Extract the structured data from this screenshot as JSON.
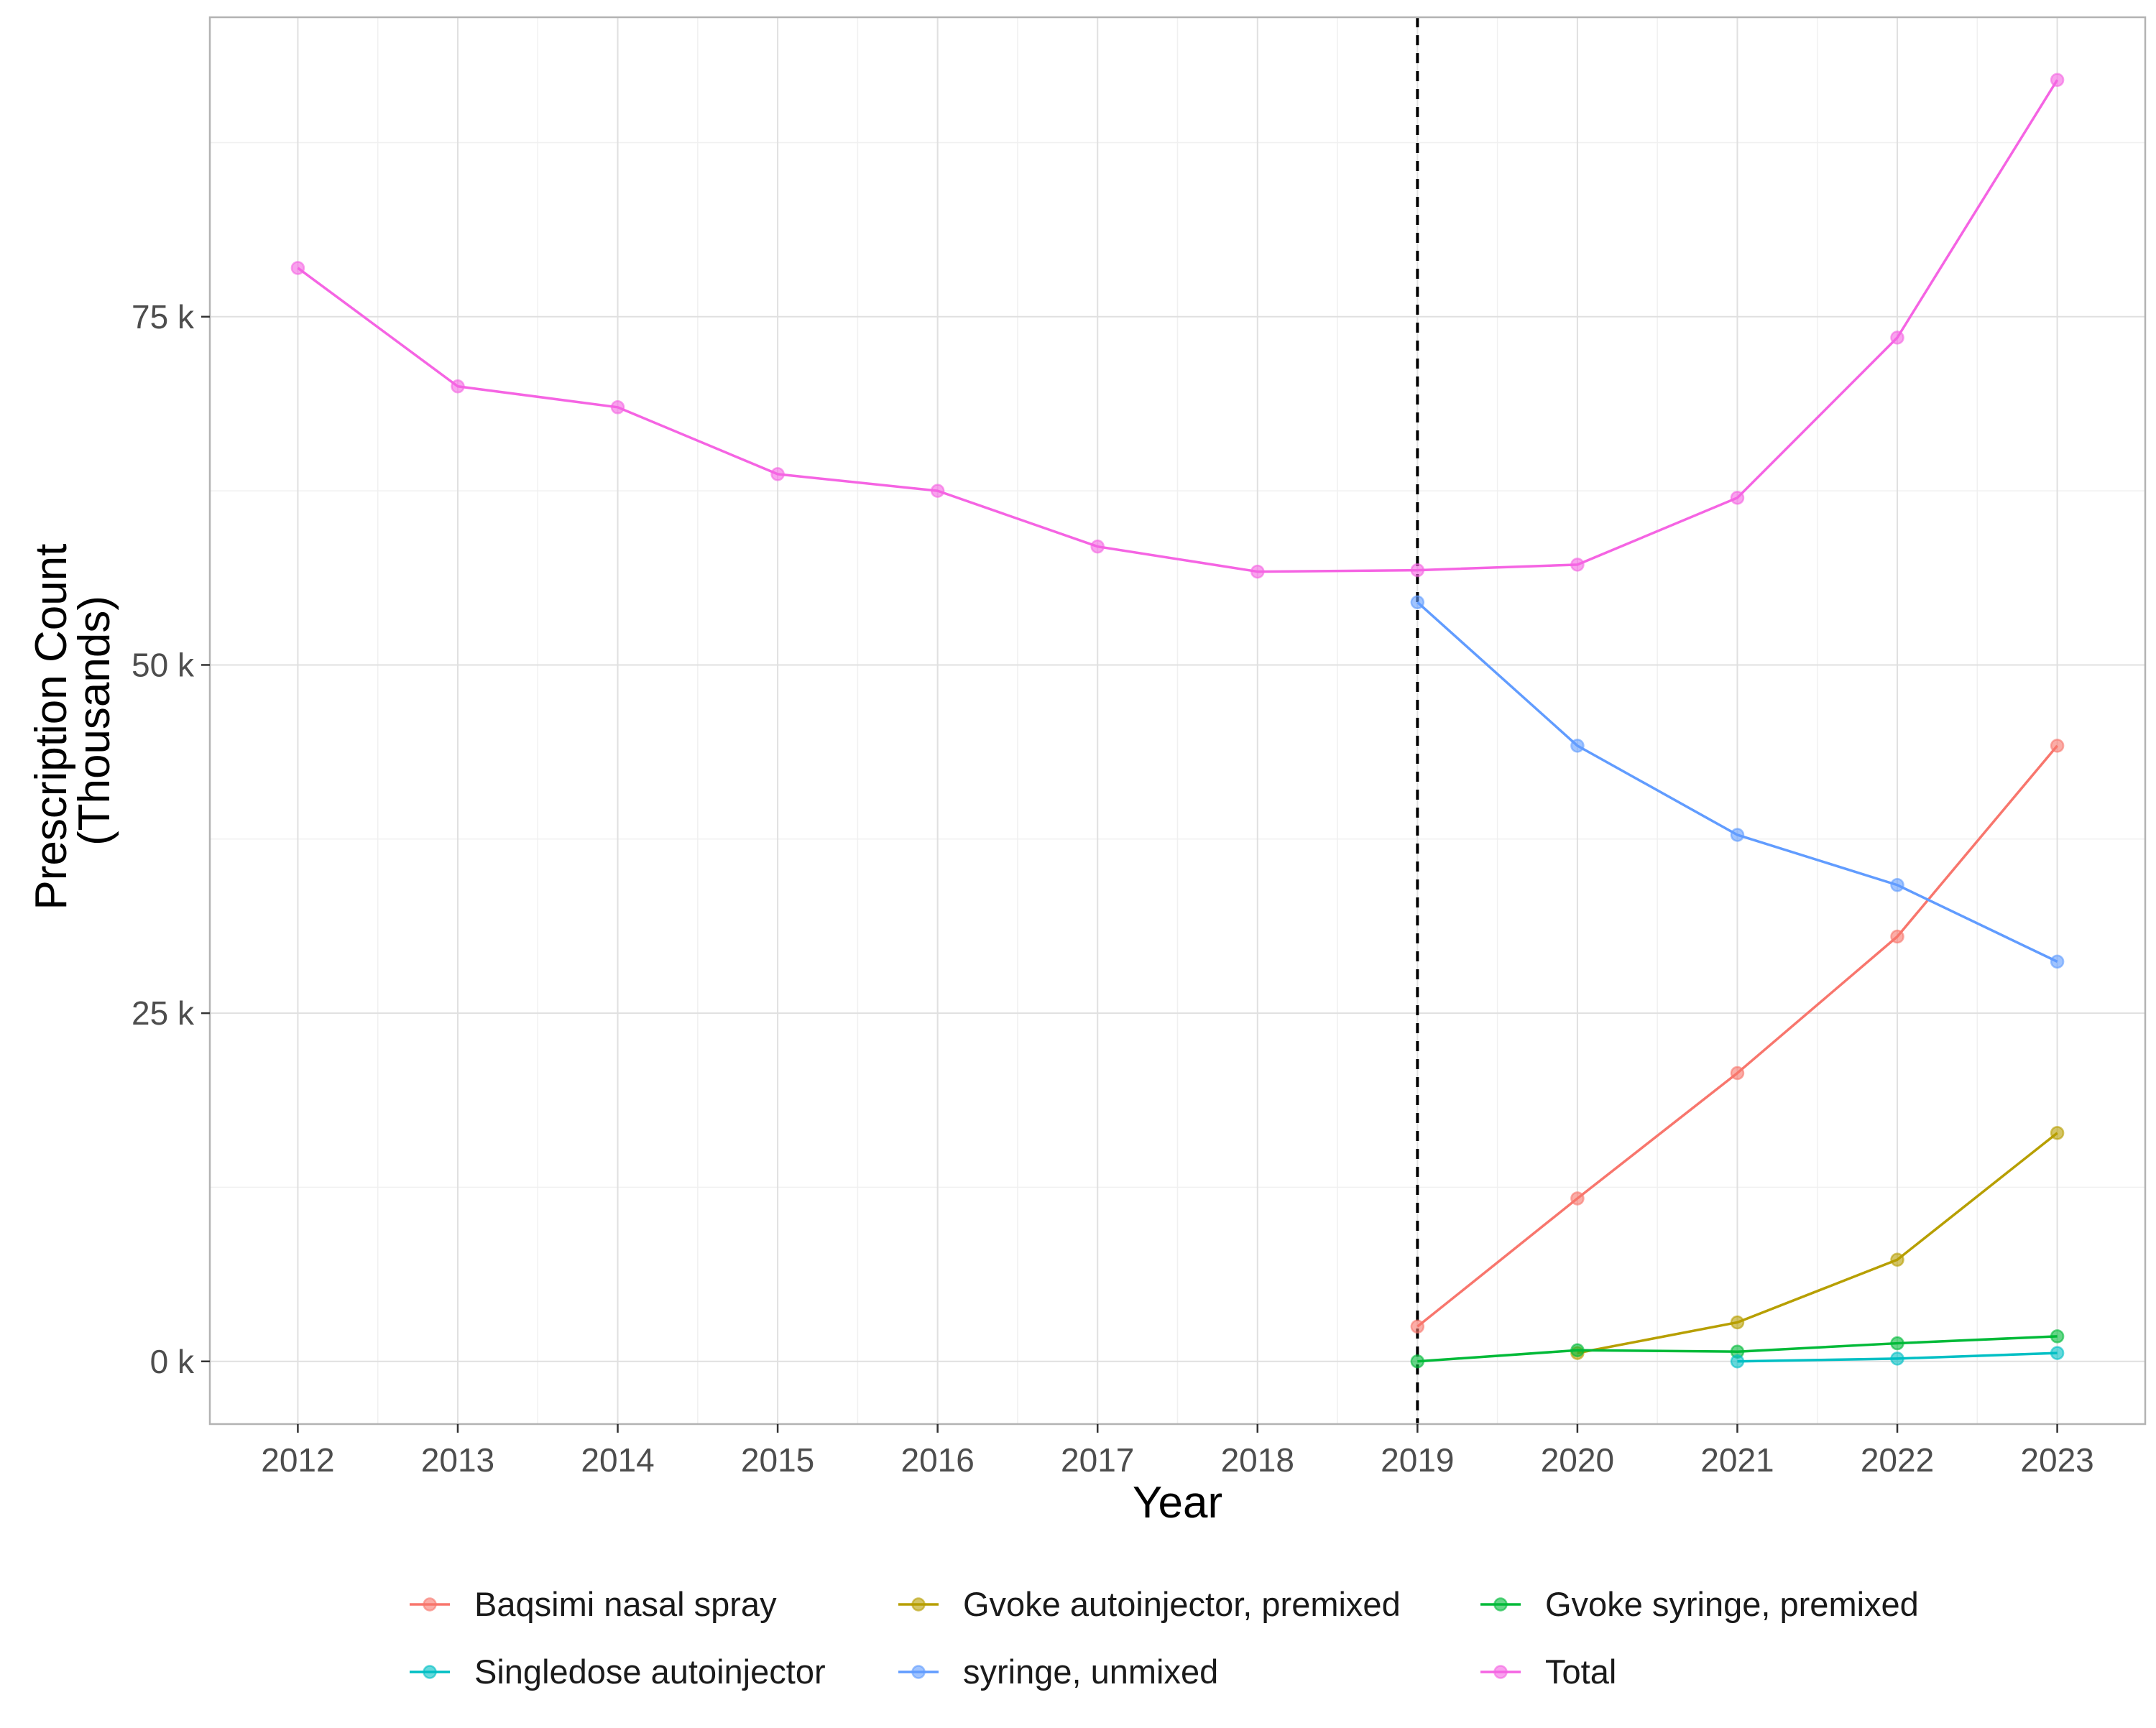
{
  "chart_data": {
    "type": "line",
    "title": "",
    "xlabel": "Year",
    "ylabel": [
      "Prescription Count",
      "(Thousands)"
    ],
    "x": [
      "2012",
      "2013",
      "2014",
      "2015",
      "2016",
      "2017",
      "2018",
      "2019",
      "2020",
      "2021",
      "2022",
      "2023"
    ],
    "xlim": [
      2011.45,
      2023.55
    ],
    "ylim": [
      -4500,
      96500
    ],
    "yticks": [
      0,
      25000,
      50000,
      75000
    ],
    "ytick_labels": [
      "0 k",
      "25 k",
      "50 k",
      "75 k"
    ],
    "grid": true,
    "legend_position": "bottom",
    "reference_line": {
      "x": 2019,
      "style": "dashed",
      "color": "#000000"
    },
    "series": [
      {
        "name": "Baqsimi nasal spray",
        "color": "#F8766D",
        "points": [
          [
            2019,
            2500
          ],
          [
            2020,
            11700
          ],
          [
            2021,
            20700
          ],
          [
            2022,
            30500
          ],
          [
            2023,
            44200
          ]
        ]
      },
      {
        "name": "Gvoke autoinjector, premixed",
        "color": "#B79F00",
        "points": [
          [
            2020,
            600
          ],
          [
            2021,
            2800
          ],
          [
            2022,
            7300
          ],
          [
            2023,
            16400
          ]
        ]
      },
      {
        "name": "Gvoke syringe, premixed",
        "color": "#00BA38",
        "points": [
          [
            2019,
            0
          ],
          [
            2020,
            800
          ],
          [
            2021,
            700
          ],
          [
            2022,
            1300
          ],
          [
            2023,
            1800
          ]
        ]
      },
      {
        "name": "Singledose autoinjector",
        "color": "#00BFC4",
        "points": [
          [
            2021,
            0
          ],
          [
            2022,
            200
          ],
          [
            2023,
            600
          ]
        ]
      },
      {
        "name": "syringe, unmixed",
        "color": "#619CFF",
        "points": [
          [
            2019,
            54500
          ],
          [
            2020,
            44200
          ],
          [
            2021,
            37800
          ],
          [
            2022,
            34200
          ],
          [
            2023,
            28700
          ]
        ]
      },
      {
        "name": "Total",
        "color": "#F564E3",
        "points": [
          [
            2012,
            78500
          ],
          [
            2013,
            70000
          ],
          [
            2014,
            68500
          ],
          [
            2015,
            63700
          ],
          [
            2016,
            62500
          ],
          [
            2017,
            58500
          ],
          [
            2018,
            56700
          ],
          [
            2019,
            56800
          ],
          [
            2020,
            57200
          ],
          [
            2021,
            62000
          ],
          [
            2022,
            73500
          ],
          [
            2023,
            92000
          ]
        ]
      }
    ],
    "legend_order": [
      0,
      1,
      2,
      3,
      4,
      5
    ]
  }
}
